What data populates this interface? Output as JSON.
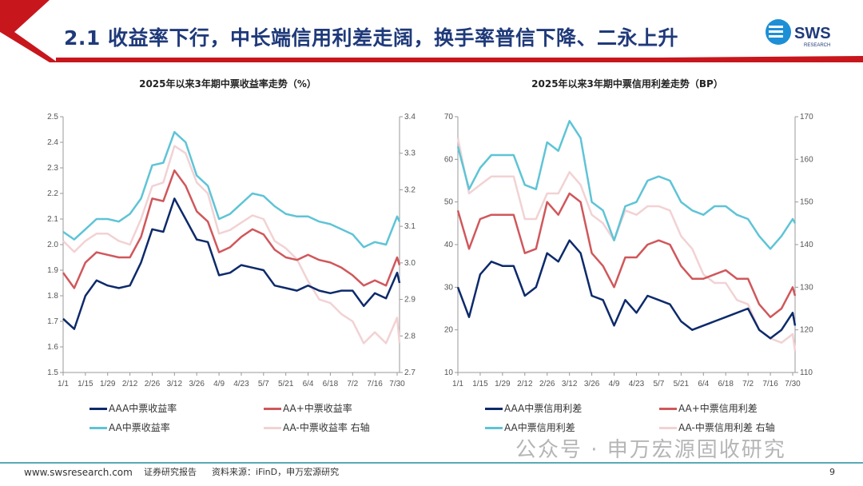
{
  "header": {
    "title": "2.1 收益率下行，中长端信用利差走阔，换手率普信下降、二永上升",
    "logo_text": "SWS",
    "logo_sub": "RESEARCH"
  },
  "colors": {
    "brand_red": "#c8161d",
    "title_blue": "#1f3a7a",
    "AAA": "#0d2a6b",
    "AA+": "#d0575b",
    "AA": "#5ec4d6",
    "AA-": "#f2d2d4"
  },
  "chart_data": [
    {
      "type": "line",
      "title": "2025年以来3年期中票收益率走势（%）",
      "x": [
        "1/1",
        "1/8",
        "1/15",
        "1/22",
        "1/29",
        "2/5",
        "2/12",
        "2/19",
        "2/26",
        "3/5",
        "3/12",
        "3/19",
        "3/26",
        "4/2",
        "4/9",
        "4/16",
        "4/23",
        "4/30",
        "5/7",
        "5/14",
        "5/21",
        "5/28",
        "6/4",
        "6/11",
        "6/18",
        "6/25",
        "7/2",
        "7/9",
        "7/16",
        "7/23",
        "7/30",
        "8/1"
      ],
      "xticks": [
        "1/1",
        "1/15",
        "1/29",
        "2/12",
        "2/26",
        "3/12",
        "3/26",
        "4/9",
        "4/23",
        "5/7",
        "5/21",
        "6/4",
        "6/18",
        "7/2",
        "7/16",
        "7/30"
      ],
      "ylim": [
        1.5,
        2.5
      ],
      "yticks": [
        "1.5",
        "1.6",
        "1.7",
        "1.8",
        "1.9",
        "2.0",
        "2.1",
        "2.2",
        "2.3",
        "2.4",
        "2.5"
      ],
      "y2lim": [
        2.7,
        3.4
      ],
      "y2ticks": [
        "2.7",
        "2.8",
        "2.9",
        "3.0",
        "3.1",
        "3.2",
        "3.3",
        "3.4"
      ],
      "series": [
        {
          "name": "AAA中票收益率",
          "axis": "left",
          "color": "#0d2a6b",
          "values": [
            1.71,
            1.67,
            1.8,
            1.86,
            1.84,
            1.83,
            1.84,
            1.93,
            2.06,
            2.05,
            2.18,
            2.1,
            2.02,
            2.01,
            1.88,
            1.89,
            1.92,
            1.91,
            1.9,
            1.84,
            1.83,
            1.82,
            1.84,
            1.82,
            1.81,
            1.82,
            1.82,
            1.76,
            1.81,
            1.79,
            1.89,
            1.85
          ]
        },
        {
          "name": "AA+中票收益率",
          "axis": "left",
          "color": "#d0575b",
          "values": [
            1.89,
            1.83,
            1.93,
            1.97,
            1.96,
            1.95,
            1.95,
            2.03,
            2.18,
            2.17,
            2.29,
            2.23,
            2.13,
            2.09,
            1.97,
            1.99,
            2.03,
            2.06,
            2.04,
            1.98,
            1.95,
            1.94,
            1.96,
            1.94,
            1.93,
            1.91,
            1.88,
            1.84,
            1.86,
            1.84,
            1.95,
            1.92
          ]
        },
        {
          "name": "AA中票收益率",
          "axis": "left",
          "color": "#5ec4d6",
          "values": [
            2.05,
            2.02,
            2.06,
            2.1,
            2.1,
            2.09,
            2.12,
            2.18,
            2.31,
            2.32,
            2.44,
            2.4,
            2.27,
            2.23,
            2.1,
            2.12,
            2.16,
            2.2,
            2.19,
            2.15,
            2.12,
            2.11,
            2.11,
            2.09,
            2.08,
            2.06,
            2.04,
            1.99,
            2.01,
            2.0,
            2.11,
            2.09
          ]
        },
        {
          "name": "AA-中票收益率 右轴",
          "axis": "right",
          "color": "#f2d2d4",
          "values": [
            3.06,
            3.03,
            3.06,
            3.08,
            3.08,
            3.06,
            3.05,
            3.12,
            3.21,
            3.22,
            3.32,
            3.3,
            3.22,
            3.19,
            3.08,
            3.09,
            3.11,
            3.13,
            3.12,
            3.06,
            3.04,
            3.01,
            2.95,
            2.9,
            2.89,
            2.86,
            2.84,
            2.78,
            2.81,
            2.78,
            2.85,
            2.78
          ]
        }
      ],
      "legend": "bottom"
    },
    {
      "type": "line",
      "title": "2025年以来3年期中票信用利差走势（BP）",
      "x": [
        "1/1",
        "1/8",
        "1/15",
        "1/22",
        "1/29",
        "2/5",
        "2/12",
        "2/19",
        "2/26",
        "3/5",
        "3/12",
        "3/19",
        "3/26",
        "4/2",
        "4/9",
        "4/16",
        "4/23",
        "4/30",
        "5/7",
        "5/14",
        "5/21",
        "5/28",
        "6/4",
        "6/11",
        "6/18",
        "6/25",
        "7/2",
        "7/9",
        "7/16",
        "7/23",
        "7/30",
        "8/1"
      ],
      "xticks": [
        "1/1",
        "1/15",
        "1/29",
        "2/12",
        "2/26",
        "3/12",
        "3/26",
        "4/9",
        "4/23",
        "5/7",
        "5/21",
        "6/4",
        "6/18",
        "7/2",
        "7/16",
        "7/30"
      ],
      "ylim": [
        10,
        70
      ],
      "yticks": [
        "10",
        "20",
        "30",
        "40",
        "50",
        "60",
        "70"
      ],
      "y2lim": [
        110,
        170
      ],
      "y2ticks": [
        "110",
        "120",
        "130",
        "140",
        "150",
        "160",
        "170"
      ],
      "series": [
        {
          "name": "AAA中票信用利差",
          "axis": "left",
          "color": "#0d2a6b",
          "values": [
            30,
            23,
            33,
            36,
            35,
            35,
            28,
            30,
            38,
            36,
            41,
            38,
            28,
            27,
            21,
            27,
            24,
            28,
            27,
            26,
            22,
            20,
            21,
            22,
            23,
            24,
            25,
            20,
            18,
            20,
            24,
            21
          ]
        },
        {
          "name": "AA+中票信用利差",
          "axis": "left",
          "color": "#d0575b",
          "values": [
            48,
            39,
            46,
            47,
            47,
            47,
            38,
            39,
            50,
            47,
            52,
            50,
            38,
            35,
            30,
            37,
            37,
            40,
            41,
            40,
            35,
            32,
            32,
            33,
            34,
            32,
            32,
            26,
            23,
            25,
            30,
            28
          ]
        },
        {
          "name": "AA中票信用利差",
          "axis": "left",
          "color": "#5ec4d6",
          "values": [
            63,
            53,
            58,
            61,
            61,
            61,
            54,
            53,
            64,
            62,
            69,
            65,
            50,
            48,
            41,
            49,
            50,
            55,
            56,
            55,
            50,
            48,
            47,
            49,
            49,
            47,
            46,
            42,
            39,
            42,
            46,
            45
          ]
        },
        {
          "name": "AA-中票信用利差 右轴",
          "axis": "right",
          "color": "#f2d2d4",
          "values": [
            165,
            152,
            154,
            156,
            156,
            156,
            146,
            146,
            152,
            152,
            157,
            154,
            147,
            145,
            141,
            148,
            147,
            149,
            149,
            148,
            142,
            139,
            133,
            131,
            131,
            127,
            126,
            120,
            118,
            117,
            119,
            115
          ]
        }
      ],
      "legend": "bottom"
    }
  ],
  "footer": {
    "url": "www.swsresearch.com",
    "report": "证券研究报告",
    "source": "资料来源：iFinD，申万宏源研究",
    "page": "9"
  },
  "watermark": "公众号 · 申万宏源固收研究"
}
